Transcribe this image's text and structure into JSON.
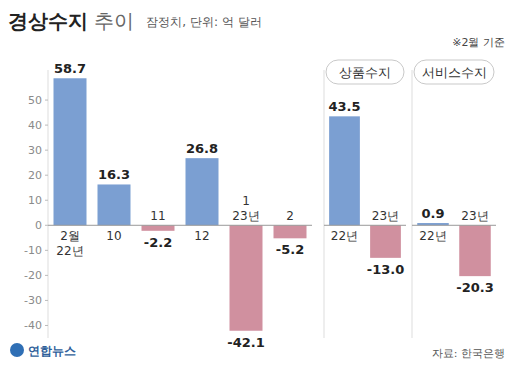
{
  "header": {
    "title": "경상수지 추이",
    "subtitle": "잠정치, 단위: 억 달러",
    "note": "※2월 기준"
  },
  "footer": {
    "source": "자료: 한국은행",
    "logo": "연합뉴스"
  },
  "chart_data": [
    {
      "type": "bar",
      "categories": [
        "2월 22년",
        "10",
        "11",
        "12",
        "1 23년",
        "2"
      ],
      "values": [
        58.7,
        16.3,
        -2.2,
        26.8,
        -42.1,
        -5.2
      ],
      "colors": [
        "#7b9fd2",
        "#7b9fd2",
        "#d0909f",
        "#7b9fd2",
        "#d0909f",
        "#d0909f"
      ],
      "ylim": [
        -45,
        62
      ],
      "yticks": [
        -40,
        -30,
        -20,
        -10,
        0,
        10,
        20,
        30,
        40,
        50
      ],
      "data_labels": true
    },
    {
      "type": "bar",
      "title": "상품수지",
      "categories": [
        "22년",
        "23년"
      ],
      "values": [
        43.5,
        -13.0
      ],
      "value_labels": [
        "43.5",
        "-13.0"
      ],
      "colors": [
        "#7b9fd2",
        "#d0909f"
      ],
      "ylim": [
        -45,
        62
      ],
      "data_labels": true,
      "tick_labels": "x"
    },
    {
      "type": "bar",
      "title": "서비스수지",
      "categories": [
        "22년",
        "23년"
      ],
      "values": [
        0.9,
        -20.3
      ],
      "value_labels": [
        "0.9",
        "-20.3"
      ],
      "colors": [
        "#7b9fd2",
        "#d0909f"
      ],
      "ylim": [
        -45,
        62
      ],
      "data_labels": true,
      "tick_labels": "x"
    }
  ]
}
